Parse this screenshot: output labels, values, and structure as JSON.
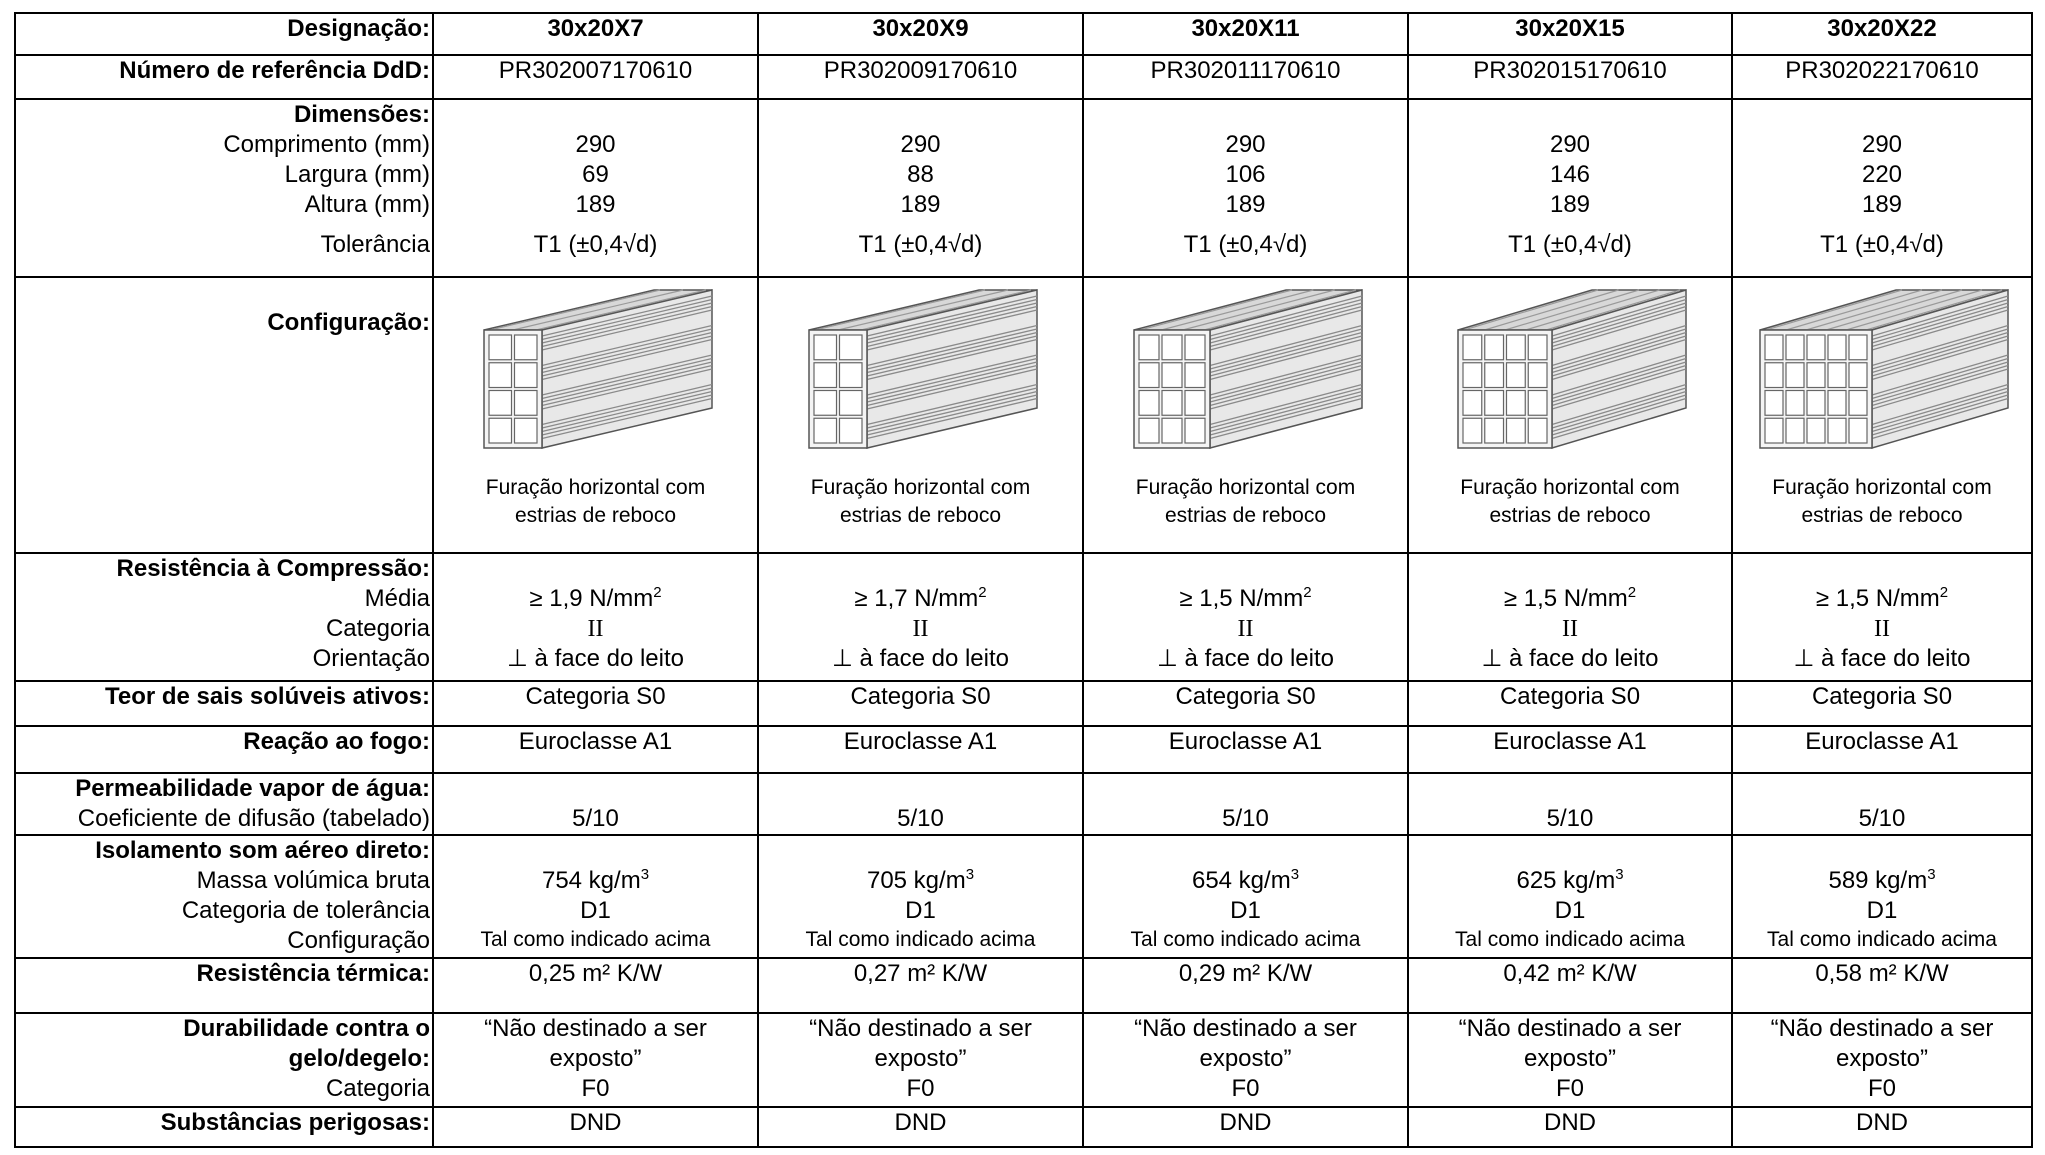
{
  "labels": {
    "designacao": "Designação:",
    "ref": "Número de referência DdD:",
    "dimensoes": "Dimensões:",
    "comprimento": "Comprimento (mm)",
    "largura": "Largura (mm)",
    "altura": "Altura (mm)",
    "tolerancia": "Tolerância",
    "configuracao": "Configuração:",
    "resistencia": "Resistência à Compressão:",
    "media": "Média",
    "categoria": "Categoria",
    "orientacao": "Orientação",
    "teor": "Teor de sais solúveis ativos:",
    "reacao": "Reação ao fogo:",
    "permeabilidade": "Permeabilidade vapor de água:",
    "coeficiente": "Coeficiente de difusão (tabelado)",
    "isolamento": "Isolamento som aéreo direto:",
    "massa": "Massa volúmica bruta",
    "cat_tol": "Categoria de tolerância",
    "config": "Configuração",
    "termica": "Resistência térmica:",
    "durabilidade1": "Durabilidade contra o",
    "durabilidade2": "gelo/degelo:",
    "categoria2": "Categoria",
    "substancias": "Substâncias perigosas:"
  },
  "products": [
    {
      "name": "30x20X7",
      "ref": "PR302007170610",
      "comprimento": "290",
      "largura": "69",
      "altura": "189",
      "tolerancia": "T1 (±0,4√d)",
      "caption1": "Furação horizontal com",
      "caption2": "estrias de reboco",
      "media": "≥ 1,9 N/mm",
      "media_sup": "2",
      "categoria": "II",
      "orientacao": "⊥ à face do leito",
      "teor": "Categoria S0",
      "reacao": "Euroclasse A1",
      "coef": "5/10",
      "massa": "754 kg/m",
      "massa_sup": "3",
      "cat_tol": "D1",
      "config": "Tal como indicado acima",
      "termica": "0,25 m² K/W",
      "dur1": "“Não destinado a ser",
      "dur2": "exposto”",
      "dur_cat": "F0",
      "substancias": "DND"
    },
    {
      "name": "30x20X9",
      "ref": "PR302009170610",
      "comprimento": "290",
      "largura": "88",
      "altura": "189",
      "tolerancia": "T1 (±0,4√d)",
      "caption1": "Furação horizontal com",
      "caption2": "estrias de reboco",
      "media": "≥ 1,7 N/mm",
      "media_sup": "2",
      "categoria": "II",
      "orientacao": "⊥ à face do leito",
      "teor": "Categoria S0",
      "reacao": "Euroclasse A1",
      "coef": "5/10",
      "massa": "705 kg/m",
      "massa_sup": "3",
      "cat_tol": "D1",
      "config": "Tal como indicado acima",
      "termica": "0,27 m² K/W",
      "dur1": "“Não destinado a ser",
      "dur2": "exposto”",
      "dur_cat": "F0",
      "substancias": "DND"
    },
    {
      "name": "30x20X11",
      "ref": "PR302011170610",
      "comprimento": "290",
      "largura": "106",
      "altura": "189",
      "tolerancia": "T1 (±0,4√d)",
      "caption1": "Furação horizontal com",
      "caption2": "estrias de reboco",
      "media": "≥ 1,5 N/mm",
      "media_sup": "2",
      "categoria": "II",
      "orientacao": "⊥ à face do leito",
      "teor": "Categoria S0",
      "reacao": "Euroclasse A1",
      "coef": "5/10",
      "massa": "654 kg/m",
      "massa_sup": "3",
      "cat_tol": "D1",
      "config": "Tal como indicado acima",
      "termica": "0,29 m² K/W",
      "dur1": "“Não destinado a ser",
      "dur2": "exposto”",
      "dur_cat": "F0",
      "substancias": "DND"
    },
    {
      "name": "30x20X15",
      "ref": "PR302015170610",
      "comprimento": "290",
      "largura": "146",
      "altura": "189",
      "tolerancia": "T1 (±0,4√d)",
      "caption1": "Furação horizontal com",
      "caption2": "estrias de reboco",
      "media": "≥ 1,5 N/mm",
      "media_sup": "2",
      "categoria": "II",
      "orientacao": "⊥ à face do leito",
      "teor": "Categoria S0",
      "reacao": "Euroclasse A1",
      "coef": "5/10",
      "massa": "625 kg/m",
      "massa_sup": "3",
      "cat_tol": "D1",
      "config": "Tal como indicado acima",
      "termica": "0,42 m² K/W",
      "dur1": "“Não destinado a ser",
      "dur2": "exposto”",
      "dur_cat": "F0",
      "substancias": "DND"
    },
    {
      "name": "30x20X22",
      "ref": "PR302022170610",
      "comprimento": "290",
      "largura": "220",
      "altura": "189",
      "tolerancia": "T1 (±0,4√d)",
      "caption1": "Furação horizontal com",
      "caption2": "estrias de reboco",
      "media": "≥ 1,5 N/mm",
      "media_sup": "2",
      "categoria": "II",
      "orientacao": "⊥ à face do leito",
      "teor": "Categoria S0",
      "reacao": "Euroclasse A1",
      "coef": "5/10",
      "massa": "589 kg/m",
      "massa_sup": "3",
      "cat_tol": "D1",
      "config": "Tal como indicado acima",
      "termica": "0,58 m² K/W",
      "dur1": "“Não destinado a ser",
      "dur2": "exposto”",
      "dur_cat": "F0",
      "substancias": "DND"
    }
  ],
  "brick_holes": [
    {
      "cols": 2,
      "rows": 4
    },
    {
      "cols": 2,
      "rows": 4
    },
    {
      "cols": 3,
      "rows": 4
    },
    {
      "cols": 4,
      "rows": 4
    },
    {
      "cols": 5,
      "rows": 4
    }
  ]
}
